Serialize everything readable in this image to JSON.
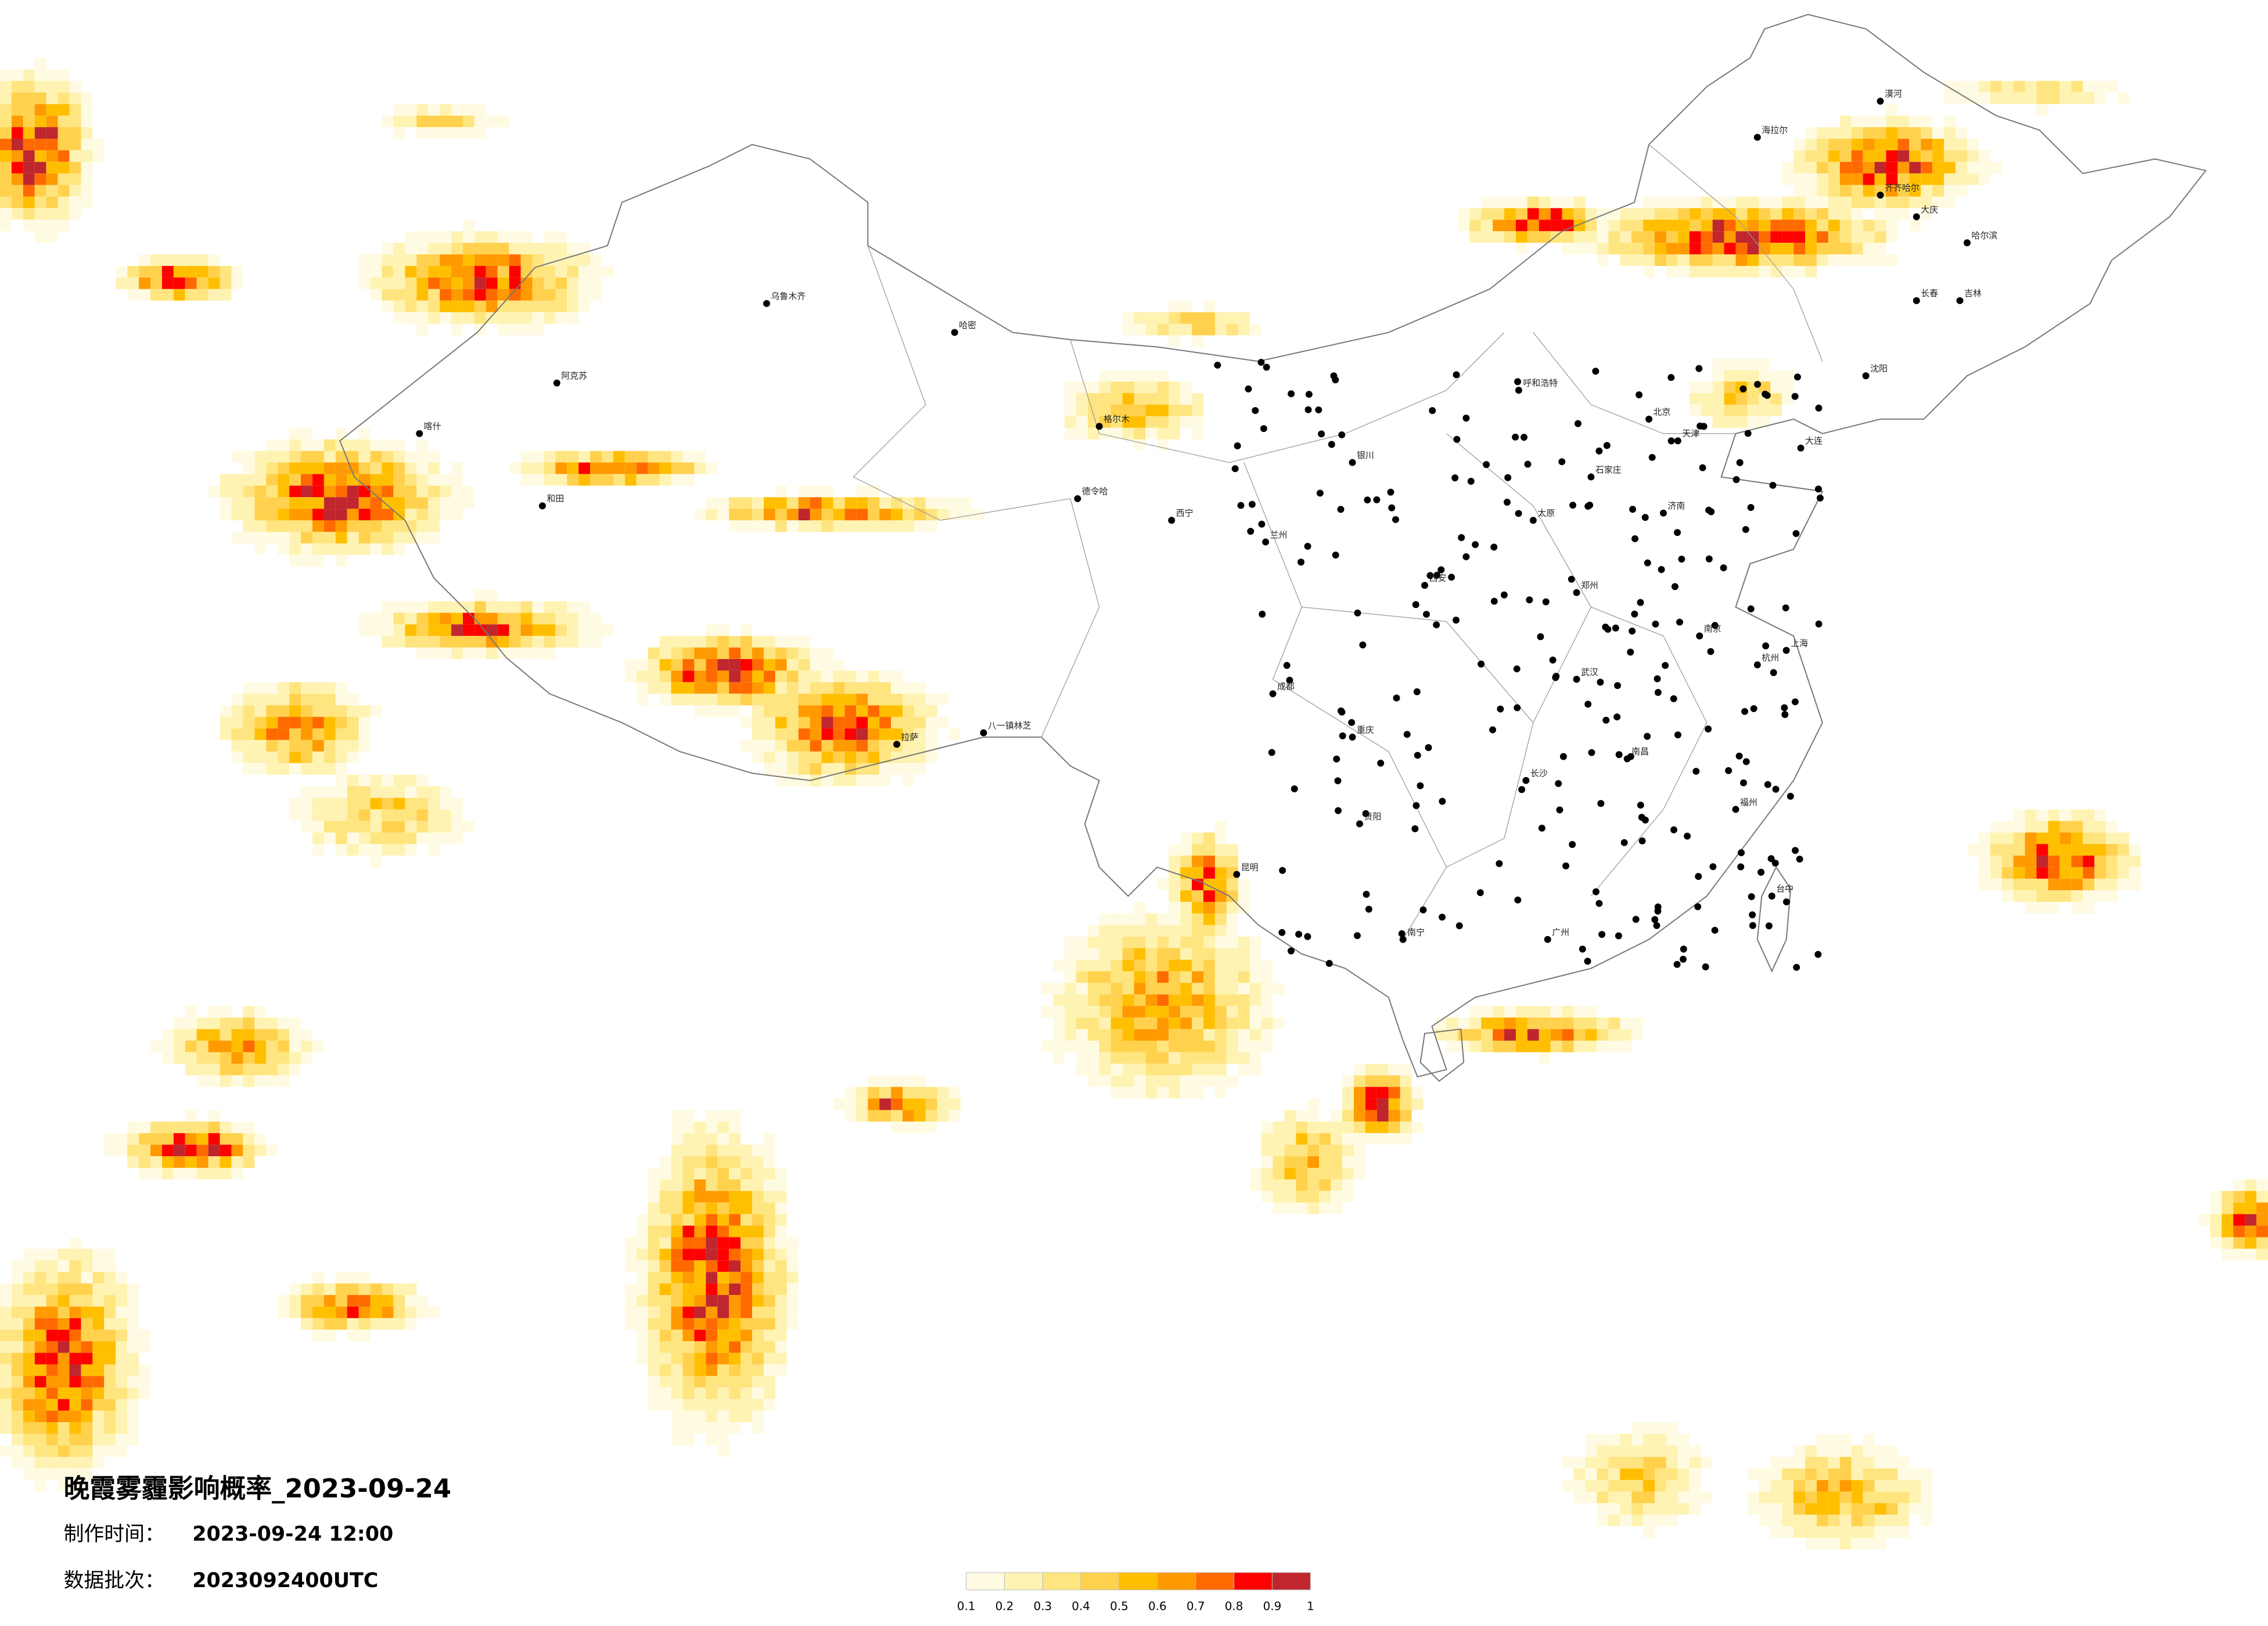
{
  "footer": {
    "title": "晚霞雾霾影响概率_2023-09-24",
    "made_label": "制作时间：",
    "made_time": "2023-09-24 12:00",
    "batch_label": "数据批次：",
    "batch": "2023092400UTC"
  },
  "legend": {
    "ticks": [
      0.1,
      0.2,
      0.3,
      0.4,
      0.5,
      0.6,
      0.7,
      0.8,
      0.9,
      1
    ],
    "colors": [
      "#fffbe3",
      "#fff3b3",
      "#ffe57f",
      "#ffd14d",
      "#ffbf00",
      "#ff9a00",
      "#ff6a00",
      "#ff0000",
      "#c0262d"
    ]
  },
  "cities": [
    "漠河",
    "海拉尔",
    "齐齐哈尔",
    "大庆",
    "哈尔滨",
    "长春",
    "吉林",
    "沈阳",
    "大连",
    "北京",
    "天津",
    "石家庄",
    "太原",
    "呼和浩特",
    "济南",
    "郑州",
    "西安",
    "兰州",
    "西宁",
    "银川",
    "成都",
    "重庆",
    "贵阳",
    "昆明",
    "南宁",
    "广州",
    "福州",
    "台中",
    "武汉",
    "长沙",
    "南昌",
    "杭州",
    "南京",
    "上海",
    "拉萨",
    "乌鲁木齐",
    "喀什",
    "和田",
    "阿克苏",
    "哈密",
    "格尔木",
    "德令哈",
    "八一镇林芝"
  ]
}
